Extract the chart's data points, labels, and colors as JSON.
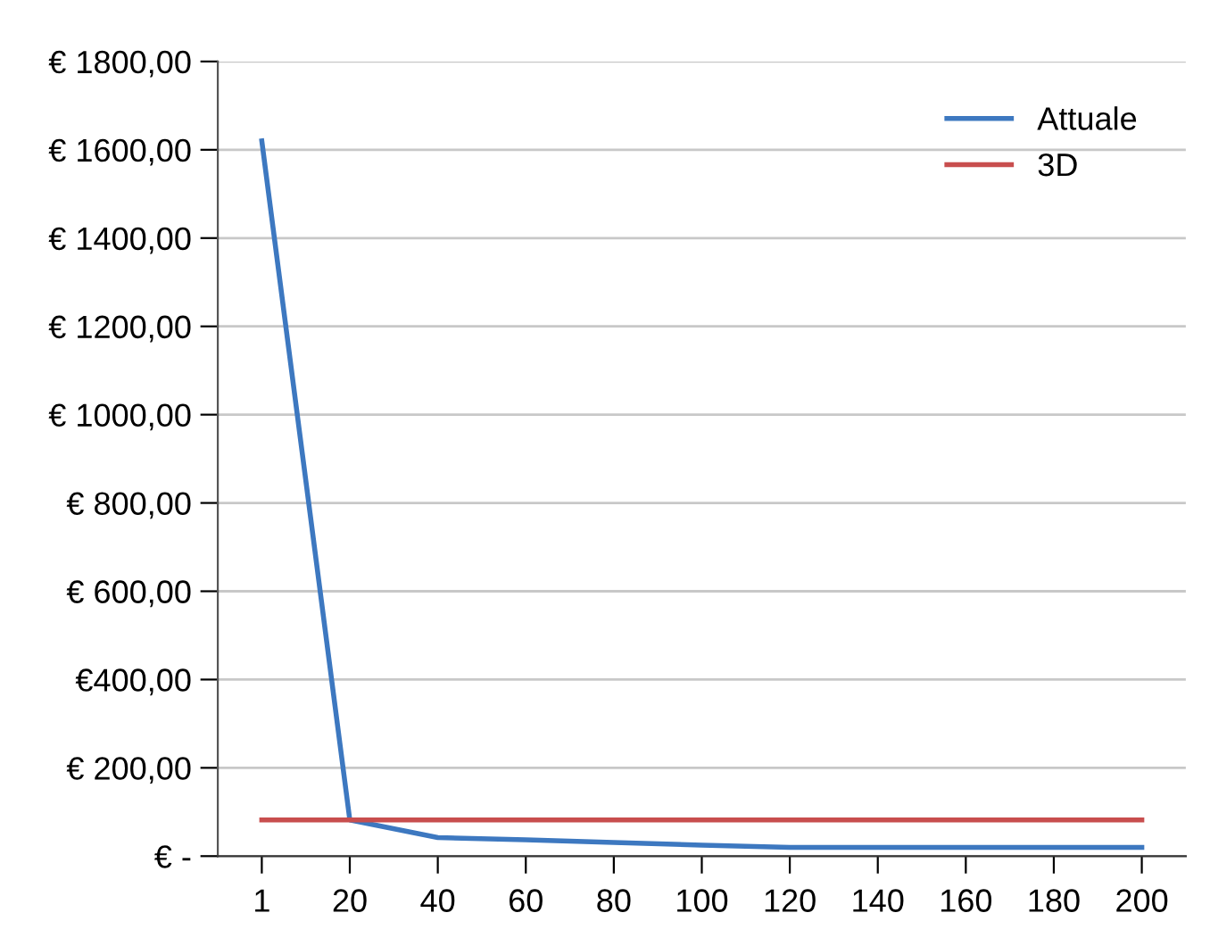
{
  "chart_data": {
    "type": "line",
    "categories": [
      "1",
      "20",
      "40",
      "60",
      "80",
      "100",
      "120",
      "140",
      "160",
      "180",
      "200"
    ],
    "series": [
      {
        "name": "Attuale",
        "color": "#3d78c0",
        "values": [
          1620,
          82,
          42,
          37,
          31,
          25,
          20,
          20,
          20,
          20,
          20
        ]
      },
      {
        "name": "3D",
        "color": "#c84e4e",
        "values": [
          82,
          82,
          82,
          82,
          82,
          82,
          82,
          82,
          82,
          82,
          82
        ]
      }
    ],
    "ylim": [
      0,
      1800
    ],
    "yticks": [
      {
        "value": 0,
        "label": "€ -"
      },
      {
        "value": 200,
        "label": "€ 200,00"
      },
      {
        "value": 400,
        "label": "€400,00"
      },
      {
        "value": 600,
        "label": "€ 600,00"
      },
      {
        "value": 800,
        "label": "€ 800,00"
      },
      {
        "value": 1000,
        "label": "€ 1000,00"
      },
      {
        "value": 1200,
        "label": "€ 1200,00"
      },
      {
        "value": 1400,
        "label": "€ 1400,00"
      },
      {
        "value": 1600,
        "label": "€ 1600,00"
      },
      {
        "value": 1800,
        "label": "€ 1800,00"
      }
    ],
    "grid": "y",
    "legend": "top right",
    "marker": "none",
    "line_style": "solid"
  }
}
